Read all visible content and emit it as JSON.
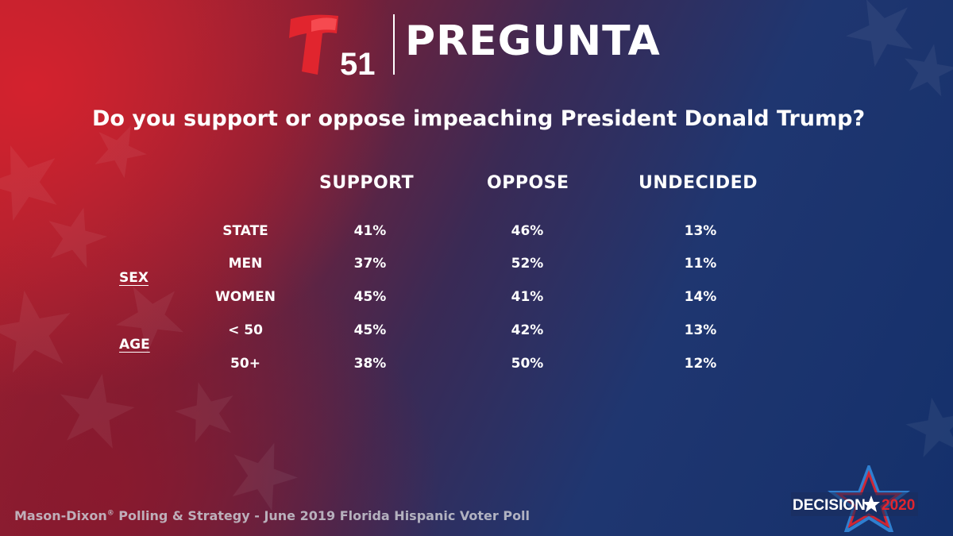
{
  "header": {
    "channel_number": "51",
    "title": "PREGUNTA"
  },
  "chart_data": {
    "type": "table",
    "title": "Do you support or oppose impeaching President Donald Trump?",
    "columns": [
      "SUPPORT",
      "OPPOSE",
      "UNDECIDED"
    ],
    "groups": [
      {
        "label": "",
        "rows": [
          {
            "label": "STATE",
            "values": [
              "41%",
              "46%",
              "13%"
            ]
          }
        ]
      },
      {
        "label": "SEX",
        "rows": [
          {
            "label": "MEN",
            "values": [
              "37%",
              "52%",
              "11%"
            ]
          },
          {
            "label": "WOMEN",
            "values": [
              "45%",
              "41%",
              "14%"
            ]
          }
        ]
      },
      {
        "label": "AGE",
        "rows": [
          {
            "label": "< 50",
            "values": [
              "45%",
              "42%",
              "13%"
            ]
          },
          {
            "label": "50+",
            "values": [
              "38%",
              "50%",
              "12%"
            ]
          }
        ]
      }
    ]
  },
  "footer": {
    "source_pre": "Mason-Dixon",
    "source_mark": "®",
    "source_post": " Polling & Strategy - June 2019 Florida Hispanic Voter Poll"
  },
  "badge": {
    "word": "DECISION",
    "year": "2020"
  },
  "colors": {
    "red_brand": "#e1252e",
    "blue_brand": "#2f7fd0",
    "text": "#ffffff"
  }
}
